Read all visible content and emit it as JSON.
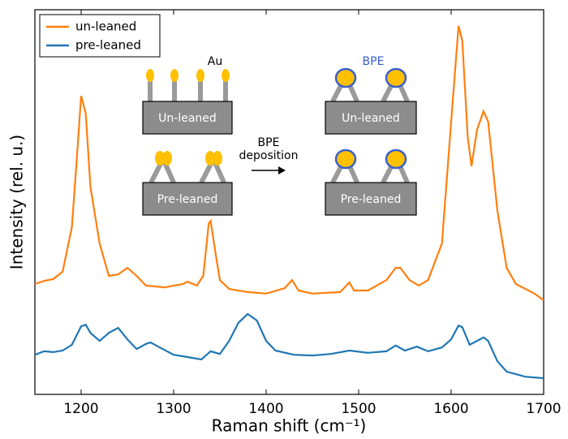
{
  "chart_data": {
    "type": "line",
    "xlabel": "Raman shift (cm⁻¹)",
    "ylabel": "Intensity (rel. u.)",
    "xlim": [
      1150,
      1700
    ],
    "xticks": [
      1200,
      1300,
      1400,
      1500,
      1600,
      1700
    ],
    "ylim": [
      0,
      100
    ],
    "legend": "upper left",
    "series": [
      {
        "name": "un-leaned",
        "color": "#ff7f0e",
        "x": [
          1150,
          1160,
          1170,
          1180,
          1190,
          1195,
          1200,
          1205,
          1210,
          1220,
          1230,
          1240,
          1250,
          1260,
          1270,
          1290,
          1310,
          1315,
          1325,
          1332,
          1338,
          1340,
          1345,
          1350,
          1360,
          1380,
          1400,
          1420,
          1428,
          1435,
          1450,
          1480,
          1490,
          1495,
          1510,
          1530,
          1540,
          1545,
          1555,
          1565,
          1575,
          1590,
          1600,
          1608,
          1612,
          1618,
          1622,
          1628,
          1635,
          1640,
          1650,
          1660,
          1670,
          1690,
          1700
        ],
        "values": [
          28.7,
          29.5,
          30.0,
          31.9,
          43.5,
          60.3,
          77.6,
          73.0,
          54.0,
          39.2,
          30.8,
          31.2,
          32.9,
          30.8,
          28.3,
          27.8,
          28.7,
          29.3,
          28.3,
          30.8,
          44.5,
          45.1,
          37.1,
          29.7,
          27.4,
          26.6,
          26.2,
          27.6,
          29.7,
          27.0,
          26.2,
          26.6,
          29.1,
          27.0,
          27.0,
          29.7,
          32.9,
          32.9,
          29.7,
          28.3,
          29.7,
          39.2,
          70.9,
          95.8,
          92.0,
          66.7,
          59.3,
          68.8,
          73.6,
          70.9,
          47.7,
          32.9,
          28.7,
          26.2,
          24.5
        ]
      },
      {
        "name": "pre-leaned",
        "color": "#1f77b4",
        "x": [
          1150,
          1160,
          1170,
          1180,
          1190,
          1200,
          1205,
          1210,
          1220,
          1230,
          1240,
          1250,
          1260,
          1270,
          1275,
          1285,
          1300,
          1315,
          1330,
          1340,
          1350,
          1360,
          1370,
          1380,
          1390,
          1400,
          1410,
          1430,
          1450,
          1470,
          1490,
          1510,
          1530,
          1540,
          1550,
          1563,
          1575,
          1590,
          1600,
          1608,
          1612,
          1620,
          1628,
          1635,
          1640,
          1650,
          1660,
          1680,
          1700
        ],
        "values": [
          10.3,
          11.2,
          11.0,
          11.4,
          12.9,
          17.7,
          18.1,
          16.0,
          13.9,
          16.0,
          17.3,
          14.3,
          11.8,
          13.1,
          13.5,
          12.2,
          10.3,
          9.7,
          9.1,
          11.2,
          10.5,
          13.9,
          18.6,
          20.9,
          19.2,
          13.9,
          11.4,
          10.3,
          10.1,
          10.5,
          11.4,
          10.8,
          11.2,
          12.7,
          11.4,
          12.4,
          11.2,
          12.2,
          14.3,
          17.9,
          17.5,
          12.9,
          13.9,
          14.8,
          13.9,
          8.6,
          5.9,
          4.6,
          4.2
        ]
      }
    ]
  },
  "inset": {
    "au_label": "Au",
    "bpe_label": "BPE",
    "arrow_label": [
      "BPE",
      "deposition"
    ],
    "boxes": [
      "Un-leaned",
      "Pre-leaned",
      "Un-leaned",
      "Pre-leaned"
    ]
  }
}
